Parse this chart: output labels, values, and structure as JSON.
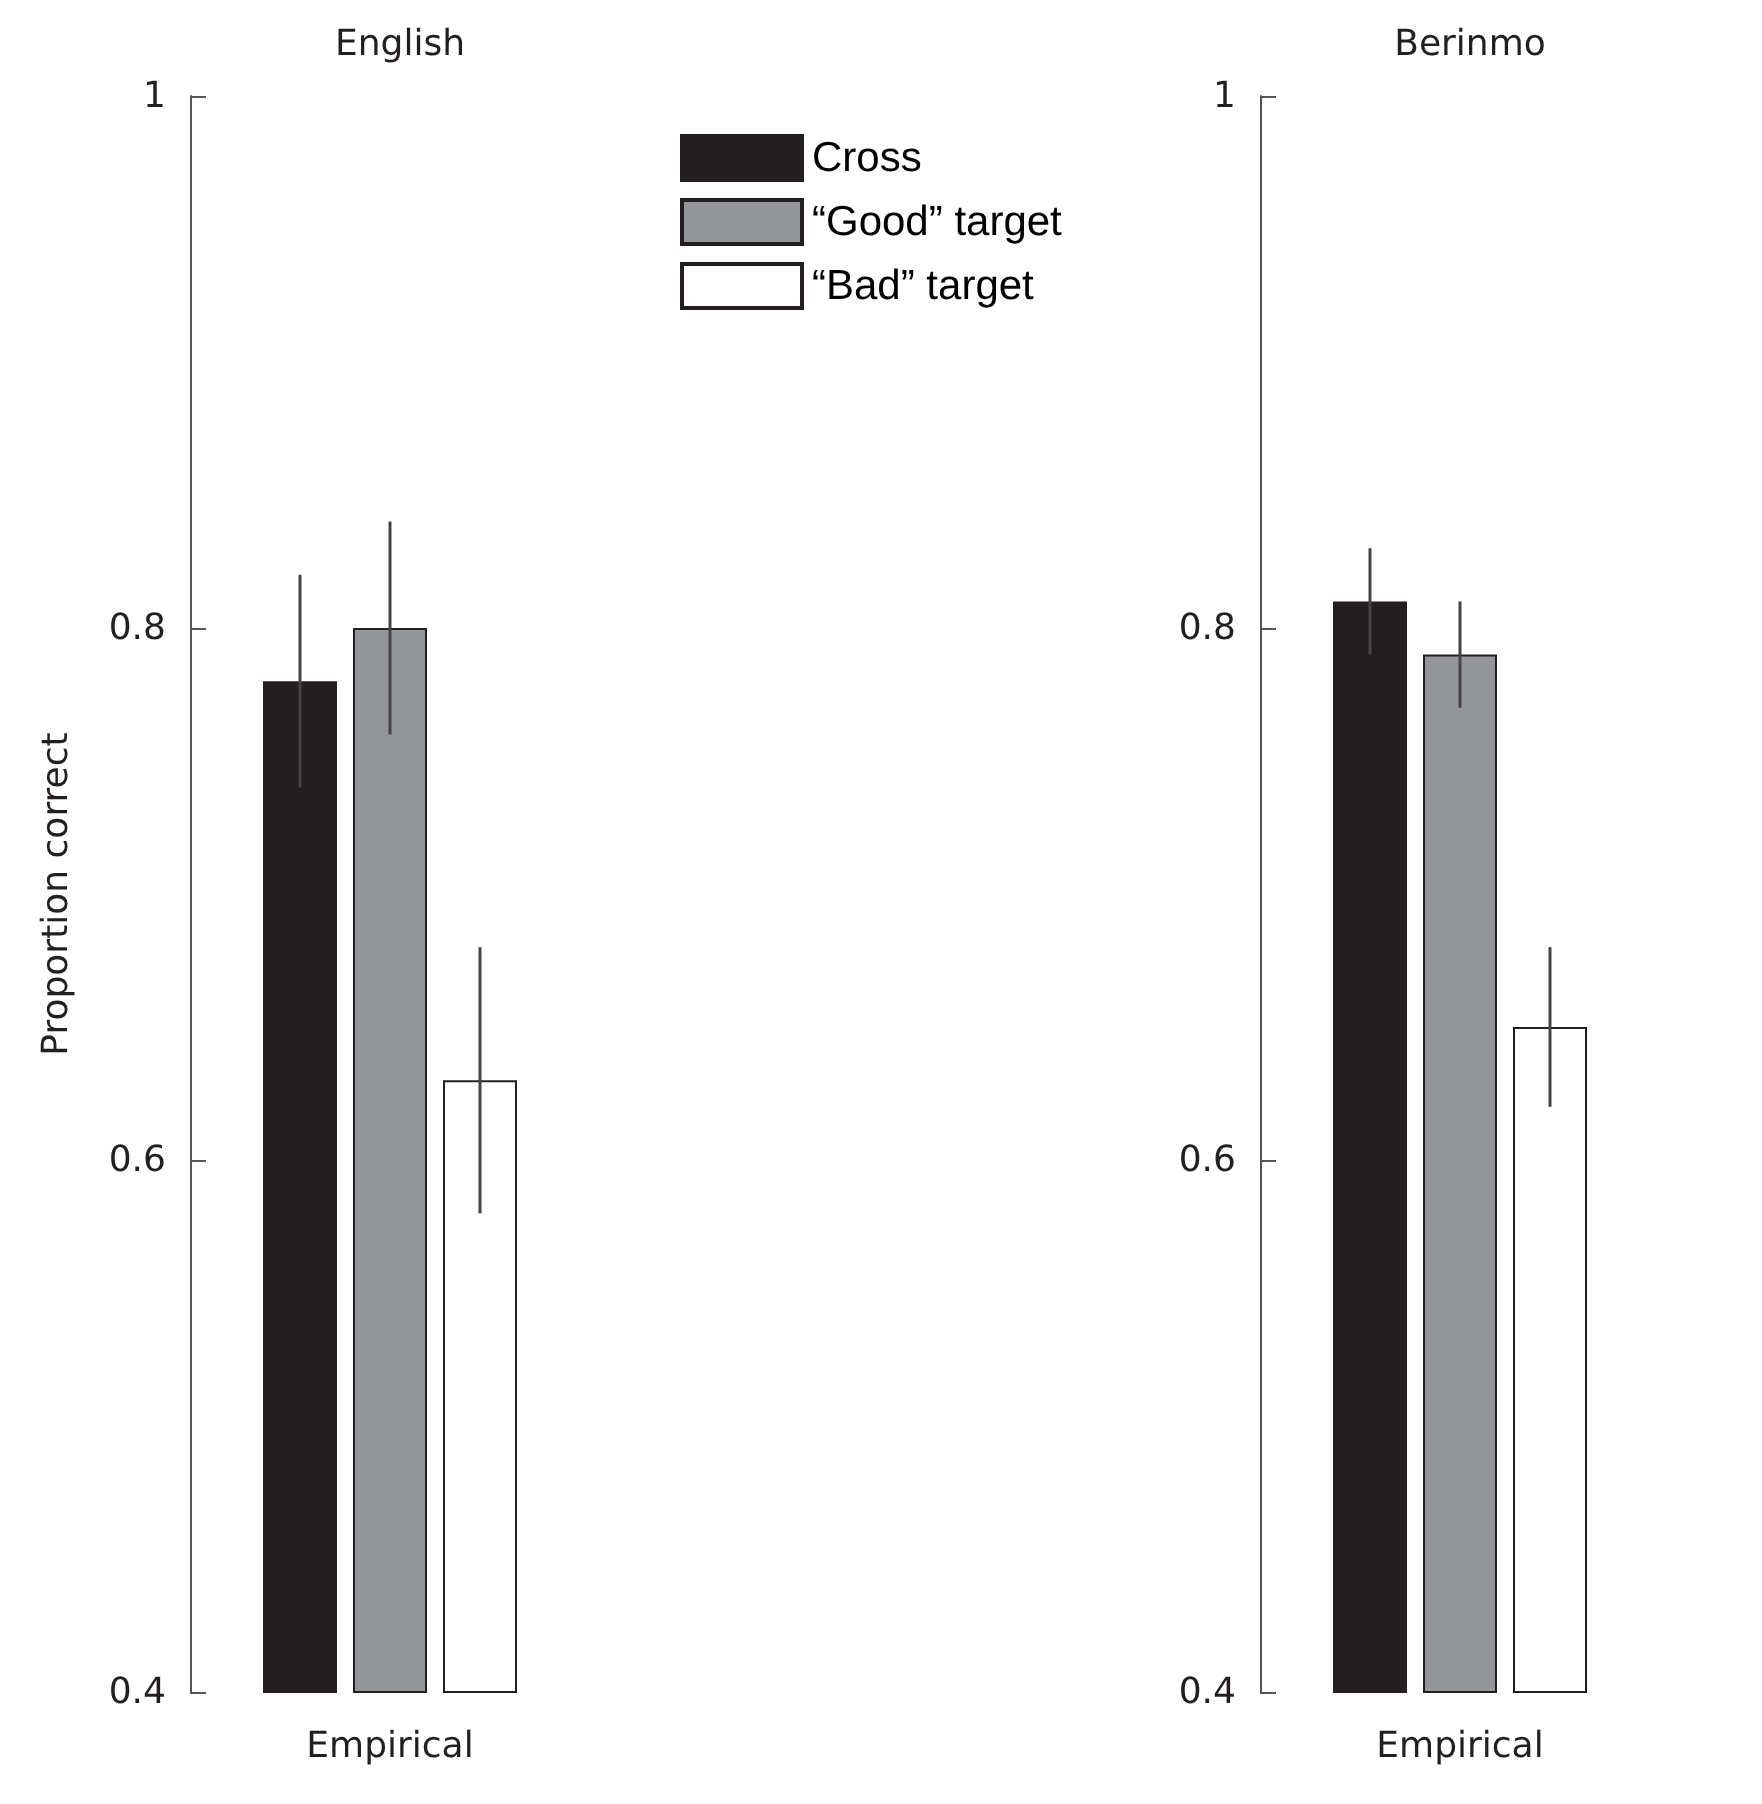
{
  "chart_data": [
    {
      "type": "bar",
      "title": "English",
      "ylabel": "Proportion correct",
      "categories": [
        "Empirical"
      ],
      "ylim": [
        0.4,
        1
      ],
      "yticks": [
        0.4,
        0.6,
        0.8,
        1
      ],
      "grid": false,
      "legend": "top right",
      "series": [
        {
          "name": "Cross",
          "color": "#231f20",
          "values": [
            0.78
          ],
          "errors": [
            0.04
          ]
        },
        {
          "name": "“Good” target",
          "color": "#939598",
          "values": [
            0.8
          ],
          "errors": [
            0.04
          ]
        },
        {
          "name": "“Bad” target",
          "color": "#ffffff",
          "values": [
            0.63
          ],
          "errors": [
            0.05
          ]
        }
      ]
    },
    {
      "type": "bar",
      "title": "Berinmo",
      "categories": [
        "Empirical"
      ],
      "ylim": [
        0.4,
        1
      ],
      "yticks": [
        0.4,
        0.6,
        0.8,
        1
      ],
      "grid": false,
      "legend": false,
      "series": [
        {
          "color": "#231f20",
          "values": [
            0.81
          ],
          "errors": [
            0.02
          ]
        },
        {
          "color": "#939598",
          "values": [
            0.79
          ],
          "errors": [
            0.02
          ]
        },
        {
          "color": "#ffffff",
          "values": [
            0.65
          ],
          "errors": [
            0.03
          ]
        }
      ]
    }
  ]
}
